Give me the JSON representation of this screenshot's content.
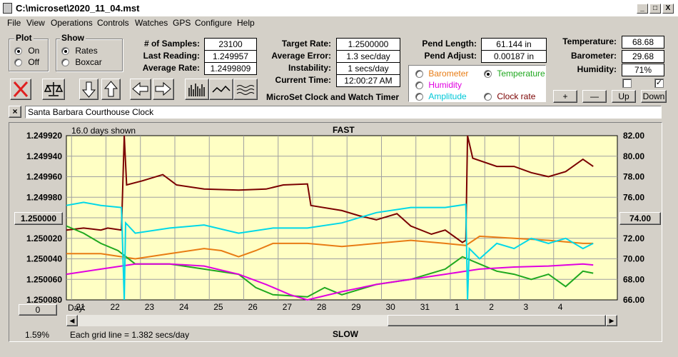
{
  "window": {
    "title": "C:\\microset\\2020_11_04.mst",
    "min": "_",
    "max": "□",
    "close": "X"
  },
  "menu": [
    "File",
    "View",
    "Operations",
    "Controls",
    "Watches",
    "GPS",
    "Configure",
    "Help"
  ],
  "plot_group": {
    "label": "Plot",
    "options": [
      "On",
      "Off"
    ],
    "selected": "On"
  },
  "show_group": {
    "label": "Show",
    "options": [
      "Rates",
      "Boxcar"
    ],
    "selected": "Rates"
  },
  "stats": {
    "samples_label": "# of Samples:",
    "samples": "23100",
    "last_label": "Last Reading:",
    "last": "1.249957",
    "avg_label": "Average Rate:",
    "avg": "1.2499809",
    "target_label": "Target Rate:",
    "target": "1.2500000",
    "avgerr_label": "Average Error:",
    "avgerr": "1.3 sec/day",
    "instab_label": "Instability:",
    "instab": "1 secs/day",
    "time_label": "Current Time:",
    "time": "12:00:27 AM",
    "pendlen_label": "Pend Length:",
    "pendlen": "61.144 in",
    "pendadj_label": "Pend Adjust:",
    "pendadj": "0.00187 in",
    "temp_label": "Temperature:",
    "temp": "68.68",
    "baro_label": "Barometer:",
    "baro": "29.68",
    "hum_label": "Humidity:",
    "hum": "71%"
  },
  "app_name": "MicroSet Clock and Watch Timer",
  "overlay": {
    "options": [
      {
        "label": "Barometer",
        "color": "#e87c14",
        "selected": false
      },
      {
        "label": "Temperature",
        "color": "#1fa81f",
        "selected": true
      },
      {
        "label": "Humidity",
        "color": "#e000e0",
        "selected": false
      },
      {
        "label": "Amplitude",
        "color": "#00d8e8",
        "selected": false
      },
      {
        "label": "Clock rate",
        "color": "#7a0000",
        "selected": false
      }
    ]
  },
  "sensor_buttons": {
    "plus": "+",
    "minus": "—",
    "up": "Up",
    "down": "Down",
    "cb2": "✓"
  },
  "notes": {
    "close": "×",
    "text": "Santa Barbara Courthouse Clock"
  },
  "chart_labels": {
    "days_shown": "16.0 days shown",
    "fast": "FAST",
    "slow": "SLOW",
    "grid_note": "Each grid line = 1.382 secs/day",
    "left_btn": "1.250000",
    "right_btn": "74.00",
    "zero_btn": "0",
    "percent": "1.59%",
    "day_label": "Day:"
  },
  "chart_data": {
    "type": "line",
    "x_tick_labels": [
      "21",
      "22",
      "23",
      "24",
      "25",
      "26",
      "27",
      "28",
      "29",
      "30",
      "31",
      "1",
      "2",
      "3",
      "4"
    ],
    "x_tick_days": [
      0.15,
      1.15,
      2.15,
      3.15,
      4.15,
      5.15,
      6.15,
      7.15,
      8.15,
      9.15,
      10.15,
      11.15,
      12.15,
      13.15,
      14.15
    ],
    "x_range": [
      0,
      16
    ],
    "y_left_ticks": [
      "1.249920",
      "1.249940",
      "1.249960",
      "1.249980",
      "1.250000",
      "1.250020",
      "1.250040",
      "1.250060",
      "1.250080"
    ],
    "y_left_range": [
      1.24992,
      1.25008
    ],
    "y_right_ticks": [
      "82.00",
      "80.00",
      "78.00",
      "76.00",
      "74.00",
      "72.00",
      "70.00",
      "68.00",
      "66.00"
    ],
    "y_right_range": [
      66,
      82
    ],
    "series": [
      {
        "name": "Clock rate",
        "color": "#7a0000",
        "axis": "left",
        "points": [
          [
            0,
            1.250012
          ],
          [
            0.5,
            1.25001
          ],
          [
            1.0,
            1.250012
          ],
          [
            1.2,
            1.25001
          ],
          [
            1.6,
            1.250012
          ],
          [
            1.68,
            1.24992
          ],
          [
            1.75,
            1.249968
          ],
          [
            2.2,
            1.249964
          ],
          [
            2.8,
            1.249958
          ],
          [
            3.2,
            1.249968
          ],
          [
            4.0,
            1.249972
          ],
          [
            5.0,
            1.249973
          ],
          [
            5.8,
            1.249972
          ],
          [
            6.3,
            1.249968
          ],
          [
            7.0,
            1.249967
          ],
          [
            7.1,
            1.249988
          ],
          [
            8.0,
            1.249993
          ],
          [
            8.5,
            1.249998
          ],
          [
            9.0,
            1.250002
          ],
          [
            9.6,
            1.249996
          ],
          [
            10.0,
            1.250008
          ],
          [
            10.6,
            1.250016
          ],
          [
            11.0,
            1.250012
          ],
          [
            11.5,
            1.250024
          ],
          [
            11.6,
            1.250022
          ],
          [
            11.65,
            1.24992
          ],
          [
            11.8,
            1.249942
          ],
          [
            12.5,
            1.24995
          ],
          [
            13.0,
            1.24995
          ],
          [
            13.5,
            1.249956
          ],
          [
            14.0,
            1.24996
          ],
          [
            14.5,
            1.249955
          ],
          [
            15.0,
            1.249943
          ],
          [
            15.3,
            1.24995
          ]
        ]
      },
      {
        "name": "Barometer",
        "color": "#e87c14",
        "axis": "right",
        "points": [
          [
            0,
            70.5
          ],
          [
            1.0,
            70.5
          ],
          [
            2.0,
            70.0
          ],
          [
            3.0,
            70.5
          ],
          [
            4.0,
            71.0
          ],
          [
            4.5,
            70.8
          ],
          [
            5.0,
            70.2
          ],
          [
            5.5,
            70.8
          ],
          [
            6.0,
            71.5
          ],
          [
            7.0,
            71.5
          ],
          [
            8.0,
            71.2
          ],
          [
            9.0,
            71.5
          ],
          [
            10.0,
            71.8
          ],
          [
            11.0,
            71.5
          ],
          [
            11.6,
            71.3
          ],
          [
            12.0,
            72.2
          ],
          [
            13.0,
            72.0
          ],
          [
            14.0,
            71.8
          ],
          [
            15.0,
            71.5
          ],
          [
            15.3,
            71.5
          ]
        ]
      },
      {
        "name": "Temperature",
        "color": "#1fa81f",
        "axis": "right",
        "points": [
          [
            0,
            73.2
          ],
          [
            0.5,
            72.5
          ],
          [
            1.0,
            71.5
          ],
          [
            1.5,
            70.8
          ],
          [
            2.0,
            69.5
          ],
          [
            3.0,
            69.5
          ],
          [
            4.0,
            69.0
          ],
          [
            5.0,
            68.5
          ],
          [
            5.5,
            67.2
          ],
          [
            6.0,
            66.5
          ],
          [
            7.0,
            66.3
          ],
          [
            7.5,
            67.2
          ],
          [
            8.0,
            66.5
          ],
          [
            8.5,
            67.0
          ],
          [
            9.0,
            67.5
          ],
          [
            10.0,
            68.0
          ],
          [
            11.0,
            69.0
          ],
          [
            11.5,
            70.2
          ],
          [
            12.0,
            69.5
          ],
          [
            12.5,
            68.8
          ],
          [
            13.0,
            68.5
          ],
          [
            13.5,
            68.0
          ],
          [
            14.0,
            68.5
          ],
          [
            14.5,
            67.3
          ],
          [
            15.0,
            68.8
          ],
          [
            15.3,
            68.6
          ]
        ]
      },
      {
        "name": "Humidity",
        "color": "#e000e0",
        "axis": "right",
        "points": [
          [
            0,
            68.5
          ],
          [
            1.0,
            69.0
          ],
          [
            2.0,
            69.5
          ],
          [
            3.0,
            69.5
          ],
          [
            4.0,
            69.3
          ],
          [
            5.0,
            68.5
          ],
          [
            5.8,
            67.5
          ],
          [
            6.5,
            66.5
          ],
          [
            7.0,
            66.0
          ],
          [
            8.0,
            66.8
          ],
          [
            9.0,
            67.5
          ],
          [
            10.0,
            68.0
          ],
          [
            11.0,
            68.5
          ],
          [
            12.0,
            69.0
          ],
          [
            13.0,
            69.2
          ],
          [
            14.0,
            69.3
          ],
          [
            15.0,
            69.5
          ],
          [
            15.3,
            69.4
          ]
        ]
      },
      {
        "name": "Amplitude",
        "color": "#00d8e8",
        "axis": "right",
        "points": [
          [
            0,
            75.2
          ],
          [
            0.5,
            75.5
          ],
          [
            1.0,
            75.2
          ],
          [
            1.6,
            75.0
          ],
          [
            1.68,
            66.0
          ],
          [
            1.72,
            73.5
          ],
          [
            2.0,
            72.5
          ],
          [
            3.0,
            73.0
          ],
          [
            4.0,
            73.3
          ],
          [
            5.0,
            72.5
          ],
          [
            6.0,
            73.0
          ],
          [
            7.0,
            73.0
          ],
          [
            8.0,
            73.5
          ],
          [
            9.0,
            74.5
          ],
          [
            10.0,
            75.0
          ],
          [
            11.0,
            75.0
          ],
          [
            11.6,
            75.3
          ],
          [
            11.65,
            66.0
          ],
          [
            11.7,
            71.0
          ],
          [
            12.0,
            70.0
          ],
          [
            12.5,
            71.5
          ],
          [
            13.0,
            71.0
          ],
          [
            13.5,
            72.0
          ],
          [
            14.0,
            71.5
          ],
          [
            14.5,
            72.0
          ],
          [
            15.0,
            71.0
          ],
          [
            15.3,
            71.5
          ]
        ]
      }
    ]
  }
}
